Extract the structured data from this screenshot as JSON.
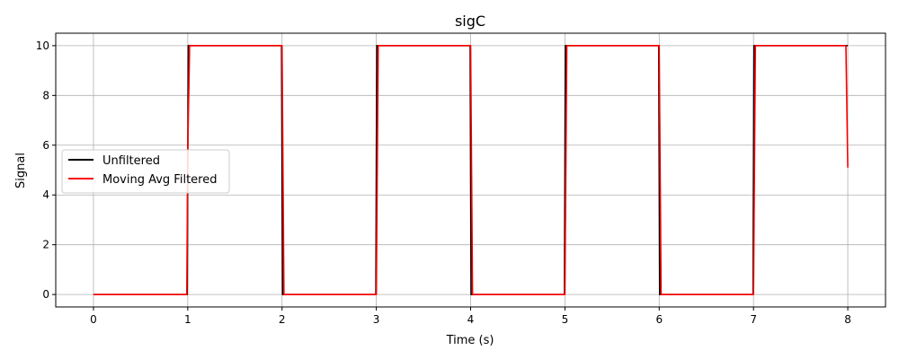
{
  "chart_data": {
    "type": "line",
    "title": "sigC",
    "xlabel": "Time (s)",
    "ylabel": "Signal",
    "xlim": [
      -0.4,
      8.4
    ],
    "ylim": [
      -0.5,
      10.5
    ],
    "xticks": [
      0,
      1,
      2,
      3,
      4,
      5,
      6,
      7,
      8
    ],
    "yticks": [
      0,
      2,
      4,
      6,
      8,
      10
    ],
    "grid": true,
    "legend_position": "center-left",
    "series": [
      {
        "name": "Unfiltered",
        "color": "#000000",
        "x": [
          0,
          0.995,
          1.005,
          1.995,
          2.005,
          2.995,
          3.005,
          3.995,
          4.005,
          4.995,
          5.005,
          5.995,
          6.005,
          6.995,
          7.005,
          8.0
        ],
        "y": [
          0,
          0,
          10,
          10,
          0,
          0,
          10,
          10,
          0,
          0,
          10,
          10,
          0,
          0,
          10,
          10
        ]
      },
      {
        "name": "Moving Avg Filtered",
        "color": "#ff0000",
        "x": [
          0,
          0.99,
          1.0,
          1.02,
          2.0,
          2.02,
          3.0,
          3.02,
          4.0,
          4.02,
          5.0,
          5.02,
          6.0,
          6.02,
          7.0,
          7.02,
          7.98,
          8.0
        ],
        "y": [
          0,
          0,
          5.8,
          10,
          10,
          0,
          0,
          10,
          10,
          0,
          0,
          10,
          10,
          0,
          0,
          10,
          10,
          5.1
        ]
      }
    ]
  }
}
